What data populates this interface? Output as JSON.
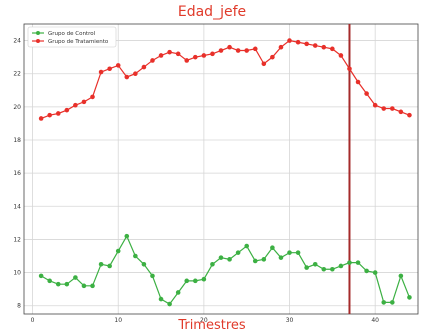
{
  "chart_data": {
    "type": "line",
    "title": "Edad_jefe",
    "xlabel": "Trimestres",
    "ylabel": "",
    "xlim": [
      -1,
      45
    ],
    "ylim": [
      7.5,
      25
    ],
    "xticks": [
      0,
      10,
      20,
      30,
      40
    ],
    "yticks": [
      8,
      10,
      12,
      14,
      16,
      18,
      20,
      22,
      24
    ],
    "grid": true,
    "legend": "top-left",
    "vline": {
      "x": 37,
      "color": "#a52a2a"
    },
    "x": [
      1,
      2,
      3,
      4,
      5,
      6,
      7,
      8,
      9,
      10,
      11,
      12,
      13,
      14,
      15,
      16,
      17,
      18,
      19,
      20,
      21,
      22,
      23,
      24,
      25,
      26,
      27,
      28,
      29,
      30,
      31,
      32,
      33,
      34,
      35,
      36,
      37,
      38,
      39,
      40,
      41,
      42,
      43,
      44
    ],
    "series": [
      {
        "name": "Grupo de Control",
        "color": "#3cb043",
        "values": [
          9.8,
          9.5,
          9.3,
          9.3,
          9.7,
          9.2,
          9.2,
          10.5,
          10.4,
          11.3,
          12.2,
          11.0,
          10.5,
          9.8,
          8.4,
          8.1,
          8.8,
          9.5,
          9.5,
          9.6,
          10.5,
          10.9,
          10.8,
          11.2,
          11.6,
          10.7,
          10.8,
          11.5,
          10.9,
          11.2,
          11.2,
          10.3,
          10.5,
          10.2,
          10.2,
          10.4,
          10.6,
          10.6,
          10.1,
          10.0,
          8.2,
          8.2,
          9.8,
          8.5
        ]
      },
      {
        "name": "Grupo de Tratamiento",
        "color": "#e8302a",
        "values": [
          19.3,
          19.5,
          19.6,
          19.8,
          20.1,
          20.3,
          20.6,
          22.1,
          22.3,
          22.5,
          21.8,
          22.0,
          22.4,
          22.8,
          23.1,
          23.3,
          23.2,
          22.8,
          23.0,
          23.1,
          23.2,
          23.4,
          23.6,
          23.4,
          23.4,
          23.5,
          22.6,
          23.0,
          23.6,
          24.0,
          23.9,
          23.8,
          23.7,
          23.6,
          23.5,
          23.1,
          22.3,
          21.5,
          20.8,
          20.1,
          19.9,
          19.9,
          19.7,
          19.5
        ]
      }
    ]
  }
}
